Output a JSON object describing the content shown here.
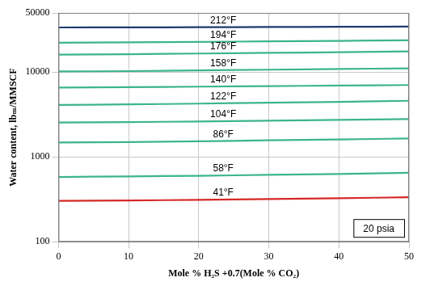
{
  "chart_data": {
    "type": "line",
    "x_label": "Mole % H₂S +0.7(Mole % CO₂)",
    "y_label": "Water content, lbₘ/MMSCF",
    "annotation": "20 psia",
    "log": "y",
    "grid": true,
    "xlim": [
      0,
      50
    ],
    "xticks": [
      0,
      10,
      20,
      30,
      40,
      50
    ],
    "ylim": [
      100,
      50000
    ],
    "yticks": [
      100,
      1000,
      10000,
      50000
    ],
    "x": [
      0,
      10,
      20,
      30,
      40,
      50
    ],
    "series": [
      {
        "name": "212°F",
        "color": "#1f3a6e",
        "values": [
          33700,
          33800,
          33900,
          34100,
          34300,
          34500
        ]
      },
      {
        "name": "194°F",
        "color": "#3cb58c",
        "values": [
          22300,
          22500,
          22800,
          23100,
          23400,
          23800
        ]
      },
      {
        "name": "176°F",
        "color": "#3cb58c",
        "values": [
          16100,
          16300,
          16600,
          16900,
          17200,
          17600
        ]
      },
      {
        "name": "158°F",
        "color": "#3cb58c",
        "values": [
          10200,
          10300,
          10500,
          10700,
          10900,
          11100
        ]
      },
      {
        "name": "140°F",
        "color": "#3cb58c",
        "values": [
          6600,
          6650,
          6750,
          6850,
          6950,
          7050
        ]
      },
      {
        "name": "122°F",
        "color": "#3cb58c",
        "values": [
          4100,
          4170,
          4260,
          4360,
          4470,
          4600
        ]
      },
      {
        "name": "104°F",
        "color": "#3cb58c",
        "values": [
          2550,
          2580,
          2620,
          2680,
          2740,
          2800
        ]
      },
      {
        "name": "86°F",
        "color": "#3cb58c",
        "values": [
          1480,
          1500,
          1530,
          1570,
          1610,
          1650
        ]
      },
      {
        "name": "58°F",
        "color": "#3cb58c",
        "values": [
          580,
          590,
          600,
          615,
          630,
          650
        ]
      },
      {
        "name": "41°F",
        "color": "#d62828",
        "values": [
          303,
          307,
          312,
          319,
          326,
          335
        ]
      }
    ]
  }
}
